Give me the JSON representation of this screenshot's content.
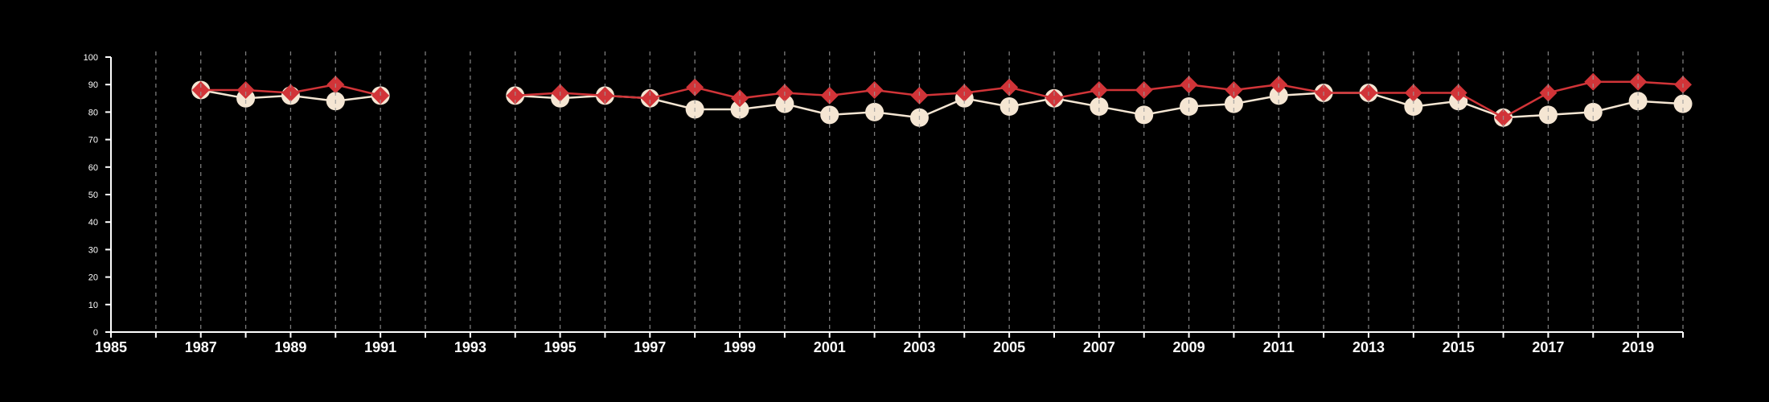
{
  "chart_data": {
    "type": "line",
    "x_ticks": [
      "1985",
      "1987",
      "1989",
      "1991",
      "1993",
      "1995",
      "1997",
      "1999",
      "2001",
      "2003",
      "2005",
      "2007",
      "2009",
      "2011",
      "2013",
      "2015",
      "2017",
      "2019"
    ],
    "y_ticks": [
      "0",
      "10",
      "20",
      "30",
      "40",
      "50",
      "60",
      "70",
      "80",
      "90",
      "100"
    ],
    "xlim": [
      1985,
      2020
    ],
    "ylim": [
      0,
      100
    ],
    "grid": "vertical dashed lines at every year",
    "series": [
      {
        "marker": "diamond",
        "color": "#d13438",
        "points": [
          [
            1987,
            88
          ],
          [
            1988,
            88
          ],
          [
            1989,
            87
          ],
          [
            1990,
            90
          ],
          [
            1991,
            86
          ],
          [
            1994,
            86
          ],
          [
            1995,
            87
          ],
          [
            1996,
            86
          ],
          [
            1997,
            85
          ],
          [
            1998,
            89
          ],
          [
            1999,
            85
          ],
          [
            2000,
            87
          ],
          [
            2001,
            86
          ],
          [
            2002,
            88
          ],
          [
            2003,
            86
          ],
          [
            2004,
            87
          ],
          [
            2005,
            89
          ],
          [
            2006,
            85
          ],
          [
            2007,
            88
          ],
          [
            2008,
            88
          ],
          [
            2009,
            90
          ],
          [
            2010,
            88
          ],
          [
            2011,
            90
          ],
          [
            2012,
            87
          ],
          [
            2013,
            87
          ],
          [
            2014,
            87
          ],
          [
            2015,
            87
          ],
          [
            2016,
            78
          ],
          [
            2017,
            87
          ],
          [
            2018,
            91
          ],
          [
            2019,
            91
          ],
          [
            2020,
            90
          ]
        ]
      },
      {
        "marker": "circle",
        "color": "#f5e6d3",
        "points": [
          [
            1987,
            88
          ],
          [
            1988,
            85
          ],
          [
            1989,
            86
          ],
          [
            1990,
            84
          ],
          [
            1991,
            86
          ],
          [
            1994,
            86
          ],
          [
            1995,
            85
          ],
          [
            1996,
            86
          ],
          [
            1997,
            85
          ],
          [
            1998,
            81
          ],
          [
            1999,
            81
          ],
          [
            2000,
            83
          ],
          [
            2001,
            79
          ],
          [
            2002,
            80
          ],
          [
            2003,
            78
          ],
          [
            2004,
            85
          ],
          [
            2005,
            82
          ],
          [
            2006,
            85
          ],
          [
            2007,
            82
          ],
          [
            2008,
            79
          ],
          [
            2009,
            82
          ],
          [
            2010,
            83
          ],
          [
            2011,
            86
          ],
          [
            2012,
            87
          ],
          [
            2013,
            87
          ],
          [
            2014,
            82
          ],
          [
            2015,
            84
          ],
          [
            2016,
            78
          ],
          [
            2017,
            79
          ],
          [
            2018,
            80
          ],
          [
            2019,
            84
          ],
          [
            2020,
            83
          ]
        ]
      }
    ]
  }
}
